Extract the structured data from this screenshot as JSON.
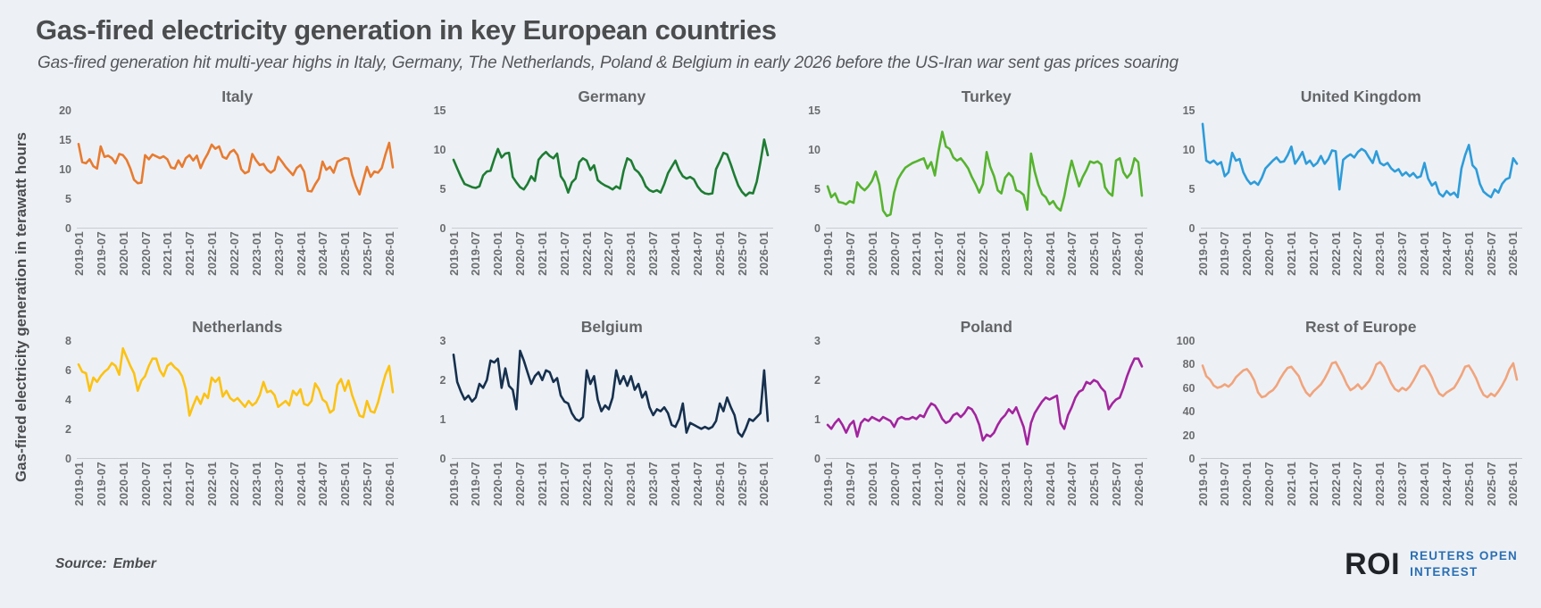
{
  "header": {
    "title": "Gas-fired electricity generation in key European countries",
    "subtitle": "Gas-fired generation hit multi-year highs in Italy, Germany, The Netherlands, Poland & Belgium in early 2026 before the US-Iran war sent gas prices soaring"
  },
  "y_axis_title": "Gas-fired electricity generation in terawatt hours",
  "x_ticks": [
    "2019-01",
    "2019-07",
    "2020-01",
    "2020-07",
    "2021-01",
    "2021-07",
    "2022-01",
    "2022-07",
    "2023-01",
    "2023-07",
    "2024-01",
    "2024-07",
    "2025-01",
    "2025-07",
    "2026-01"
  ],
  "footer": {
    "source_label": "Source:",
    "source_value": "Ember"
  },
  "logo": {
    "abbr": "ROI",
    "line1": "REUTERS OPEN",
    "line2": "INTEREST",
    "abbr_color": "#202327",
    "text_color": "#2B6FB3"
  },
  "colors": {
    "background": "#EDF1F6",
    "title_text": "#4B4C4E",
    "subtitle_text": "#55565A",
    "chart_title_text": "#646567",
    "tick_text": "#6B6C6E",
    "baseline": "#C8CCD2"
  },
  "chart_data": [
    {
      "type": "line",
      "title": "Italy",
      "color": "#E87B2F",
      "ylim": [
        0,
        20
      ],
      "yticks": [
        0,
        5,
        10,
        15,
        20
      ],
      "x_start": "2019-01",
      "x_end": "2026-02",
      "frequency": "monthly",
      "values": [
        14.3,
        11.2,
        11.0,
        11.7,
        10.5,
        10.1,
        13.9,
        12.1,
        12.3,
        11.9,
        11.0,
        12.6,
        12.4,
        11.6,
        10.1,
        8.2,
        7.6,
        7.7,
        12.4,
        11.7,
        12.5,
        12.2,
        11.9,
        12.2,
        11.7,
        10.3,
        10.1,
        11.5,
        10.4,
        11.9,
        12.4,
        11.5,
        12.3,
        10.2,
        11.6,
        12.7,
        14.2,
        13.5,
        13.9,
        12.1,
        11.8,
        12.9,
        13.3,
        12.4,
        10.0,
        9.3,
        9.6,
        12.6,
        11.5,
        10.7,
        10.9,
        9.9,
        9.4,
        9.9,
        12.1,
        11.3,
        10.4,
        9.7,
        9.0,
        10.2,
        10.7,
        9.6,
        6.3,
        6.2,
        7.4,
        8.4,
        11.3,
        9.9,
        10.4,
        9.4,
        11.3,
        11.6,
        11.9,
        11.8,
        9.0,
        7.1,
        5.7,
        8.1,
        10.4,
        8.7,
        9.6,
        9.4,
        10.2,
        12.5,
        14.5,
        10.3
      ]
    },
    {
      "type": "line",
      "title": "Germany",
      "color": "#1E7C33",
      "ylim": [
        0,
        15
      ],
      "yticks": [
        0,
        5,
        10,
        15
      ],
      "x_start": "2019-01",
      "x_end": "2026-02",
      "frequency": "monthly",
      "values": [
        8.7,
        7.6,
        6.5,
        5.6,
        5.4,
        5.2,
        5.1,
        5.3,
        6.7,
        7.2,
        7.3,
        8.8,
        10.1,
        9.0,
        9.5,
        9.6,
        6.5,
        5.8,
        5.2,
        4.9,
        5.6,
        6.6,
        6.0,
        8.7,
        9.3,
        9.7,
        9.2,
        8.9,
        9.5,
        6.6,
        5.9,
        4.5,
        5.8,
        6.3,
        8.4,
        8.9,
        8.6,
        7.4,
        8.0,
        6.1,
        5.7,
        5.4,
        5.2,
        4.9,
        5.3,
        5.0,
        7.3,
        8.9,
        8.6,
        7.5,
        7.1,
        6.4,
        5.3,
        4.8,
        4.6,
        4.8,
        4.5,
        5.6,
        7.0,
        7.8,
        8.6,
        7.4,
        6.6,
        6.3,
        6.5,
        6.2,
        5.3,
        4.7,
        4.4,
        4.3,
        4.4,
        7.5,
        8.5,
        9.6,
        9.4,
        8.1,
        6.7,
        5.4,
        4.6,
        4.1,
        4.5,
        4.4,
        5.9,
        8.4,
        11.3,
        9.3
      ]
    },
    {
      "type": "line",
      "title": "Turkey",
      "color": "#56B32E",
      "ylim": [
        0,
        15
      ],
      "yticks": [
        0,
        5,
        10,
        15
      ],
      "x_start": "2019-01",
      "x_end": "2026-02",
      "frequency": "monthly",
      "values": [
        5.3,
        3.9,
        4.4,
        3.3,
        3.2,
        3.0,
        3.4,
        3.2,
        5.8,
        5.2,
        4.8,
        5.3,
        6.0,
        7.2,
        5.5,
        2.2,
        1.5,
        1.7,
        4.5,
        6.2,
        7.0,
        7.7,
        8.0,
        8.3,
        8.5,
        8.7,
        8.9,
        7.6,
        8.4,
        6.7,
        9.8,
        12.3,
        10.4,
        10.1,
        9.0,
        8.6,
        8.9,
        8.3,
        7.6,
        6.5,
        5.6,
        4.5,
        5.6,
        9.7,
        7.8,
        6.6,
        4.8,
        4.4,
        6.4,
        7.0,
        6.5,
        4.8,
        4.6,
        4.2,
        2.3,
        9.5,
        7.2,
        5.5,
        4.3,
        3.9,
        3.0,
        3.4,
        2.6,
        2.2,
        4.0,
        6.5,
        8.6,
        6.9,
        5.3,
        6.5,
        7.4,
        8.5,
        8.3,
        8.5,
        8.1,
        5.2,
        4.5,
        4.1,
        8.6,
        8.9,
        7.1,
        6.4,
        7.0,
        8.9,
        8.4,
        4.1
      ]
    },
    {
      "type": "line",
      "title": "United Kingdom",
      "color": "#2E9CD9",
      "ylim": [
        0,
        15
      ],
      "yticks": [
        0,
        5,
        10,
        15
      ],
      "x_start": "2019-01",
      "x_end": "2026-02",
      "frequency": "monthly",
      "values": [
        13.3,
        8.6,
        8.3,
        8.6,
        8.1,
        8.4,
        6.6,
        7.1,
        9.6,
        8.6,
        8.8,
        7.1,
        6.2,
        5.6,
        5.9,
        5.5,
        6.4,
        7.6,
        8.1,
        8.6,
        9.0,
        8.4,
        8.5,
        9.3,
        10.4,
        8.2,
        8.9,
        9.7,
        8.2,
        8.6,
        7.9,
        8.3,
        9.2,
        8.2,
        8.8,
        9.9,
        9.8,
        4.9,
        8.7,
        9.1,
        9.4,
        9.0,
        9.7,
        10.1,
        9.8,
        9.0,
        8.3,
        9.8,
        8.3,
        8.0,
        8.3,
        7.6,
        7.2,
        7.5,
        6.7,
        7.1,
        6.6,
        7.0,
        6.4,
        6.6,
        8.3,
        6.3,
        5.4,
        5.8,
        4.4,
        4.0,
        4.7,
        4.2,
        4.5,
        3.9,
        7.6,
        9.3,
        10.6,
        8.0,
        7.5,
        5.6,
        4.6,
        4.2,
        3.9,
        4.9,
        4.5,
        5.6,
        6.2,
        6.4,
        8.9,
        8.2
      ]
    },
    {
      "type": "line",
      "title": "Netherlands",
      "color": "#FCC213",
      "ylim": [
        0,
        8
      ],
      "yticks": [
        0,
        2,
        4,
        6,
        8
      ],
      "x_start": "2019-01",
      "x_end": "2026-02",
      "frequency": "monthly",
      "values": [
        6.4,
        5.9,
        5.8,
        4.6,
        5.5,
        5.2,
        5.6,
        5.9,
        6.1,
        6.5,
        6.3,
        5.7,
        7.5,
        6.9,
        6.3,
        5.8,
        4.6,
        5.3,
        5.6,
        6.3,
        6.8,
        6.8,
        6.0,
        5.6,
        6.3,
        6.5,
        6.2,
        6.0,
        5.6,
        4.7,
        2.9,
        3.6,
        4.2,
        3.7,
        4.4,
        4.1,
        5.5,
        5.2,
        5.5,
        4.2,
        4.6,
        4.1,
        3.9,
        4.1,
        3.8,
        3.5,
        3.9,
        3.6,
        3.8,
        4.3,
        5.2,
        4.5,
        4.6,
        4.3,
        3.5,
        3.7,
        3.9,
        3.6,
        4.6,
        4.3,
        4.7,
        3.7,
        3.6,
        3.9,
        5.1,
        4.7,
        4.0,
        3.8,
        3.1,
        3.3,
        5.0,
        5.4,
        4.6,
        5.3,
        4.3,
        3.6,
        2.9,
        2.8,
        3.9,
        3.2,
        3.1,
        3.8,
        4.8,
        5.7,
        6.3,
        4.5
      ]
    },
    {
      "type": "line",
      "title": "Belgium",
      "color": "#16304D",
      "ylim": [
        0,
        3
      ],
      "yticks": [
        0,
        1,
        2,
        3
      ],
      "x_start": "2019-01",
      "x_end": "2026-02",
      "frequency": "monthly",
      "values": [
        2.65,
        1.95,
        1.7,
        1.5,
        1.6,
        1.45,
        1.55,
        1.9,
        1.8,
        2.0,
        2.5,
        2.45,
        2.55,
        1.8,
        2.3,
        1.85,
        1.75,
        1.25,
        2.75,
        2.5,
        2.2,
        1.9,
        2.1,
        2.2,
        2.0,
        2.25,
        2.2,
        1.95,
        2.05,
        1.6,
        1.45,
        1.4,
        1.15,
        1.0,
        0.95,
        1.05,
        2.25,
        1.9,
        2.1,
        1.5,
        1.2,
        1.35,
        1.25,
        1.55,
        2.25,
        1.9,
        2.1,
        1.85,
        2.1,
        1.75,
        1.9,
        1.55,
        1.7,
        1.3,
        1.1,
        1.25,
        1.2,
        1.3,
        1.15,
        0.85,
        0.8,
        1.0,
        1.4,
        0.65,
        0.9,
        0.85,
        0.8,
        0.75,
        0.8,
        0.75,
        0.8,
        0.95,
        1.4,
        1.2,
        1.55,
        1.3,
        1.1,
        0.65,
        0.55,
        0.75,
        1.0,
        0.95,
        1.05,
        1.15,
        2.25,
        0.95
      ]
    },
    {
      "type": "line",
      "title": "Poland",
      "color": "#A3249E",
      "ylim": [
        0,
        3
      ],
      "yticks": [
        0,
        1,
        2,
        3
      ],
      "x_start": "2019-01",
      "x_end": "2026-02",
      "frequency": "monthly",
      "values": [
        0.85,
        0.75,
        0.9,
        1.0,
        0.85,
        0.65,
        0.85,
        0.95,
        0.55,
        0.9,
        1.0,
        0.95,
        1.05,
        1.0,
        0.95,
        1.05,
        1.0,
        0.95,
        0.8,
        1.0,
        1.05,
        1.0,
        1.0,
        1.05,
        1.0,
        1.1,
        1.05,
        1.25,
        1.4,
        1.35,
        1.2,
        1.0,
        0.9,
        0.95,
        1.1,
        1.15,
        1.05,
        1.15,
        1.3,
        1.25,
        1.1,
        0.85,
        0.45,
        0.6,
        0.55,
        0.65,
        0.85,
        1.0,
        1.1,
        1.25,
        1.15,
        1.3,
        1.05,
        0.8,
        0.35,
        0.9,
        1.15,
        1.3,
        1.45,
        1.55,
        1.5,
        1.55,
        1.6,
        0.9,
        0.75,
        1.1,
        1.3,
        1.55,
        1.7,
        1.75,
        1.95,
        1.9,
        2.0,
        1.95,
        1.8,
        1.7,
        1.25,
        1.4,
        1.5,
        1.55,
        1.8,
        2.1,
        2.35,
        2.55,
        2.55,
        2.35
      ]
    },
    {
      "type": "line",
      "title": "Rest of Europe",
      "color": "#F1A47C",
      "ylim": [
        0,
        100
      ],
      "yticks": [
        0,
        20,
        40,
        60,
        80,
        100
      ],
      "x_start": "2019-01",
      "x_end": "2026-02",
      "frequency": "monthly",
      "values": [
        79,
        70,
        67,
        62,
        60,
        61,
        63,
        61,
        64,
        69,
        72,
        75,
        76,
        72,
        66,
        56,
        52,
        53,
        56,
        58,
        62,
        68,
        73,
        77,
        78,
        74,
        70,
        62,
        56,
        53,
        57,
        60,
        63,
        68,
        74,
        81,
        82,
        76,
        70,
        63,
        58,
        60,
        63,
        59,
        62,
        66,
        72,
        80,
        82,
        78,
        71,
        64,
        59,
        57,
        60,
        58,
        61,
        66,
        72,
        78,
        79,
        75,
        69,
        61,
        55,
        53,
        56,
        58,
        60,
        65,
        71,
        78,
        79,
        74,
        68,
        60,
        54,
        52,
        55,
        53,
        57,
        62,
        68,
        76,
        81,
        67
      ]
    }
  ]
}
